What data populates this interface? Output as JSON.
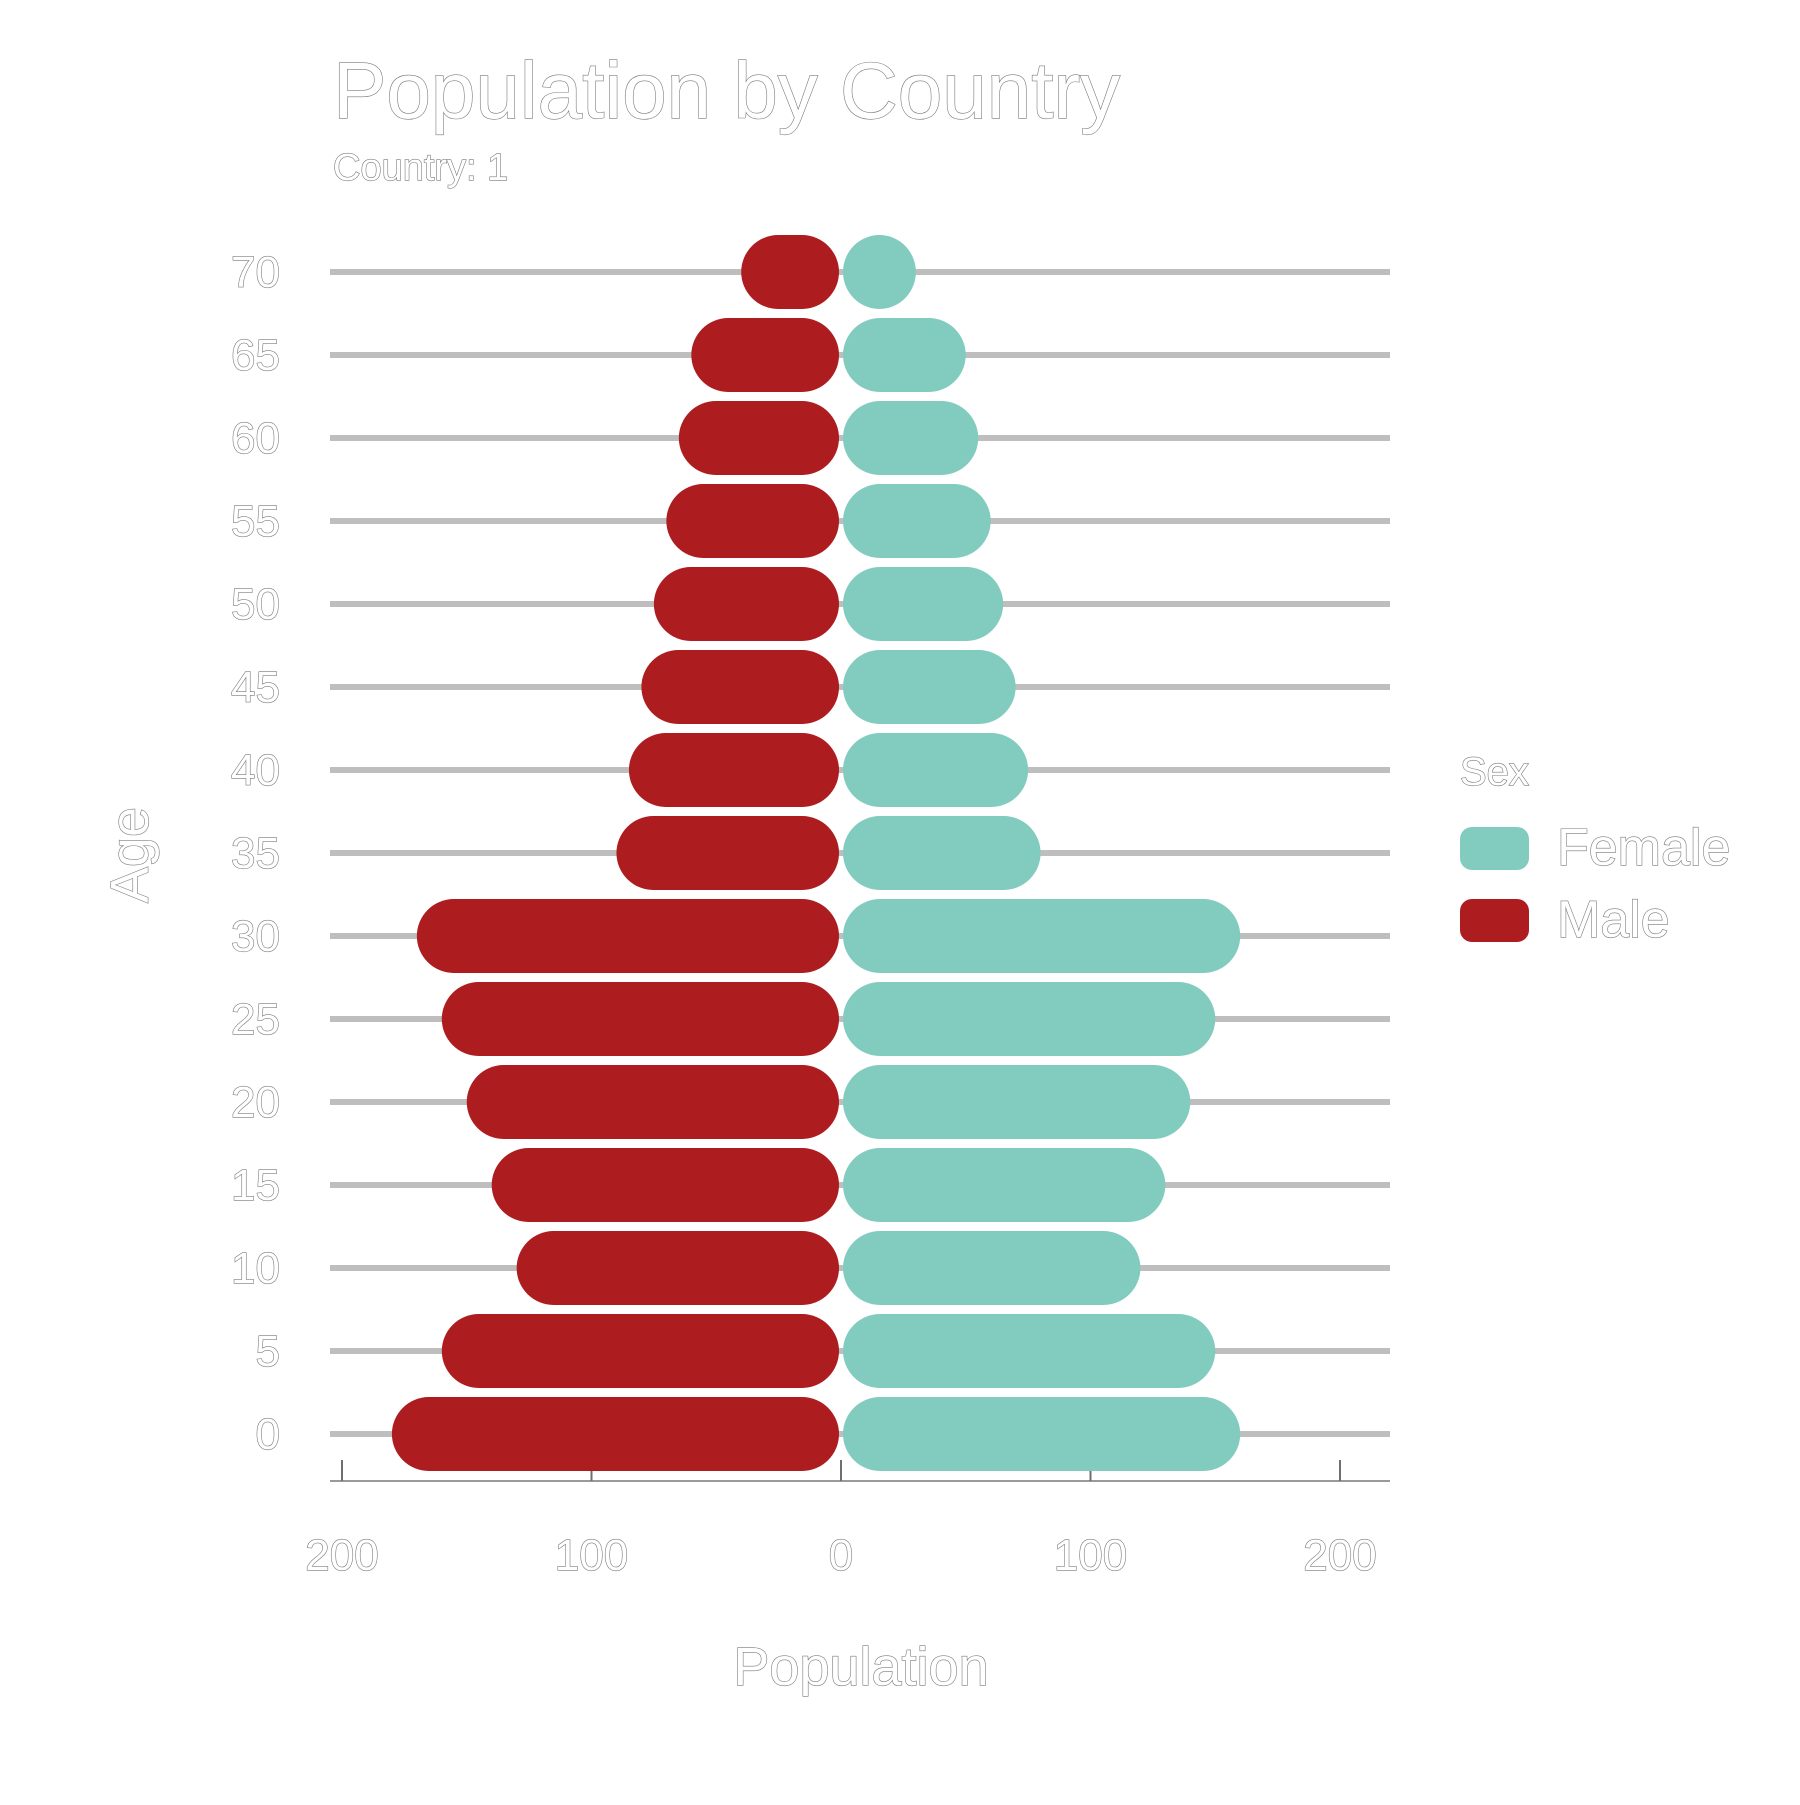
{
  "chart_data": {
    "type": "bar",
    "orientation": "horizontal",
    "layout": "population-pyramid",
    "title": "Population by Country",
    "subtitle": "Country: 1",
    "xlabel": "Population",
    "ylabel": "Age",
    "categories": [
      "0",
      "5",
      "10",
      "15",
      "20",
      "25",
      "30",
      "35",
      "40",
      "45",
      "50",
      "55",
      "60",
      "65",
      "70"
    ],
    "series": [
      {
        "name": "Female",
        "color": "#82cbbf",
        "side": "right",
        "values": [
          160,
          150,
          120,
          130,
          140,
          150,
          160,
          80,
          75,
          70,
          65,
          60,
          55,
          50,
          30
        ]
      },
      {
        "name": "Male",
        "color": "#ad1c1f",
        "side": "left",
        "values": [
          180,
          160,
          130,
          140,
          150,
          160,
          170,
          90,
          85,
          80,
          75,
          70,
          65,
          60,
          40
        ]
      }
    ],
    "xlim": [
      -200,
      200
    ],
    "x_ticks": [
      -200,
      -100,
      0,
      100,
      200
    ],
    "x_tick_labels": [
      "200",
      "100",
      "0",
      "100",
      "200"
    ],
    "grid": "horizontal",
    "legend": {
      "title": "Sex",
      "position": "right",
      "entries": [
        "Female",
        "Male"
      ]
    }
  }
}
